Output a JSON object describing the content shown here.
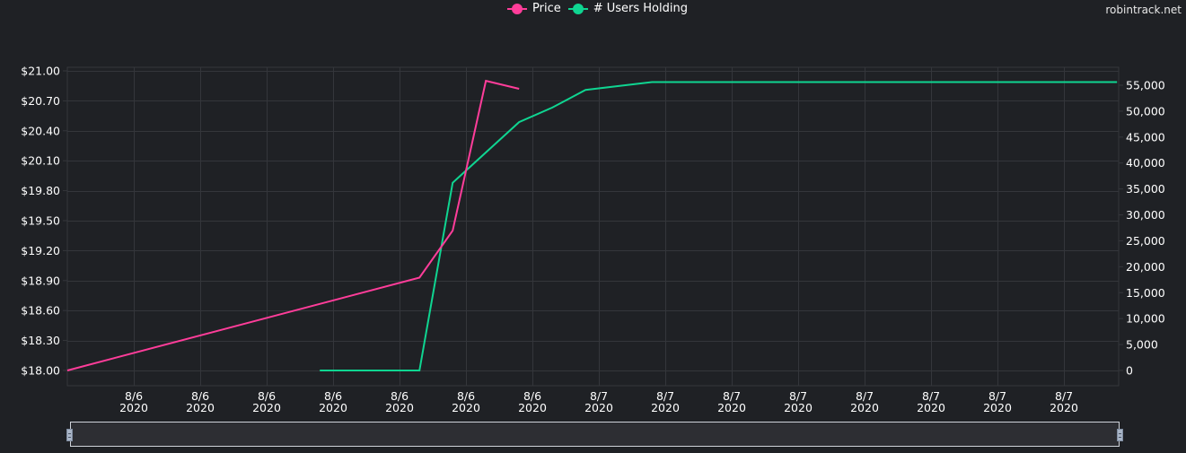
{
  "watermark": "robintrack.net",
  "legend": {
    "items": [
      {
        "label": "Price",
        "color": "#ff3d9a"
      },
      {
        "label": "# Users Holding",
        "color": "#0fd591"
      }
    ]
  },
  "axes": {
    "left_ticks": [
      "$21.00",
      "$20.70",
      "$20.40",
      "$20.10",
      "$19.80",
      "$19.50",
      "$19.20",
      "$18.90",
      "$18.60",
      "$18.30",
      "$18.00"
    ],
    "right_ticks": [
      "55,000",
      "50,000",
      "45,000",
      "40,000",
      "35,000",
      "30,000",
      "25,000",
      "20,000",
      "15,000",
      "10,000",
      "5,000",
      "0"
    ],
    "x_ticks": [
      {
        "date": "8/6",
        "year": "2020"
      },
      {
        "date": "8/6",
        "year": "2020"
      },
      {
        "date": "8/6",
        "year": "2020"
      },
      {
        "date": "8/6",
        "year": "2020"
      },
      {
        "date": "8/6",
        "year": "2020"
      },
      {
        "date": "8/6",
        "year": "2020"
      },
      {
        "date": "8/6",
        "year": "2020"
      },
      {
        "date": "8/7",
        "year": "2020"
      },
      {
        "date": "8/7",
        "year": "2020"
      },
      {
        "date": "8/7",
        "year": "2020"
      },
      {
        "date": "8/7",
        "year": "2020"
      },
      {
        "date": "8/7",
        "year": "2020"
      },
      {
        "date": "8/7",
        "year": "2020"
      },
      {
        "date": "8/7",
        "year": "2020"
      },
      {
        "date": "8/7",
        "year": "2020"
      }
    ]
  },
  "chart_data": {
    "type": "line",
    "title": "",
    "xlabel": "",
    "ylabel_left": "Price",
    "ylabel_right": "# Users Holding",
    "legend_position": "top-center",
    "grid": true,
    "x_tick_labels": [
      "8/6 2020",
      "8/6 2020",
      "8/6 2020",
      "8/6 2020",
      "8/6 2020",
      "8/6 2020",
      "8/6 2020",
      "8/7 2020",
      "8/7 2020",
      "8/7 2020",
      "8/7 2020",
      "8/7 2020",
      "8/7 2020",
      "8/7 2020",
      "8/7 2020"
    ],
    "ylim_left": [
      18.0,
      21.0
    ],
    "ylim_right": [
      0,
      55000
    ],
    "series": [
      {
        "name": "Price",
        "axis": "left",
        "color": "#ff3d9a",
        "points": [
          {
            "x_index": 0.0,
            "y": 18.0
          },
          {
            "x_index": 5.3,
            "y": 18.93
          },
          {
            "x_index": 5.8,
            "y": 19.4
          },
          {
            "x_index": 6.3,
            "y": 20.9
          },
          {
            "x_index": 6.8,
            "y": 20.82
          }
        ]
      },
      {
        "name": "# Users Holding",
        "axis": "right",
        "color": "#0fd591",
        "points": [
          {
            "x_index": 3.8,
            "y": 0
          },
          {
            "x_index": 5.3,
            "y": 0
          },
          {
            "x_index": 5.8,
            "y": 36200
          },
          {
            "x_index": 6.8,
            "y": 47900
          },
          {
            "x_index": 7.3,
            "y": 50700
          },
          {
            "x_index": 7.8,
            "y": 54100
          },
          {
            "x_index": 8.8,
            "y": 55600
          },
          {
            "x_index": 15.8,
            "y": 55600
          }
        ]
      }
    ]
  }
}
